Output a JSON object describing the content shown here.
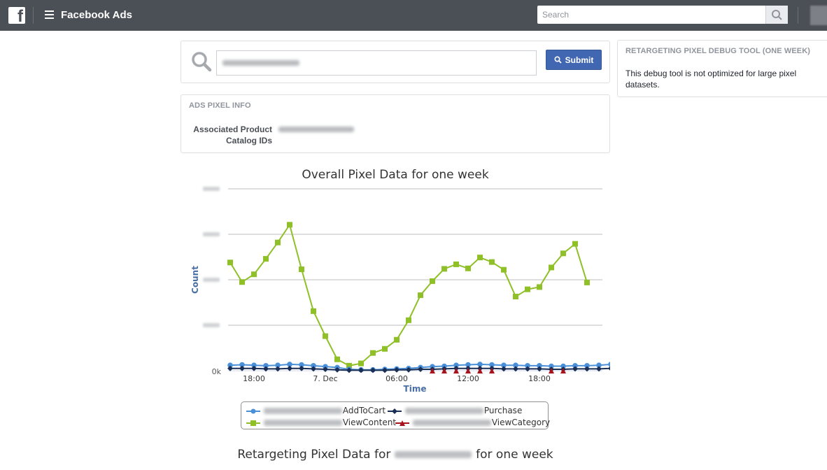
{
  "topbar": {
    "app_title": "Facebook Ads",
    "search_placeholder": "Search",
    "logo_letter": "f"
  },
  "pixel_search": {
    "submit_label": "Submit"
  },
  "pixel_info": {
    "title": "ADS PIXEL INFO",
    "catalog_label_1": "Associated Product",
    "catalog_label_2": "Catalog IDs"
  },
  "debug_panel": {
    "title": "RETARGETING PIXEL DEBUG TOOL (ONE WEEK)",
    "message": "This debug tool is not optimized for large pixel datasets."
  },
  "chart_data": {
    "type": "line",
    "title": "Overall Pixel Data for one week",
    "xlabel": "Time",
    "ylabel": "Count",
    "y_tick_labels": [
      "0k"
    ],
    "x_tick_labels": [
      "18:00",
      "7. Dec",
      "06:00",
      "12:00",
      "18:00"
    ],
    "grid": true,
    "legend_position": "bottom",
    "series": [
      {
        "name": "AddToCart",
        "color": "#4a90d9",
        "marker": "circle",
        "values": [
          1.2,
          1.3,
          1.2,
          1.1,
          1.2,
          1.4,
          1.3,
          1.1,
          0.9,
          0.7,
          0.3,
          0.2,
          0.2,
          0.3,
          0.4,
          0.5,
          0.7,
          0.9,
          1.0,
          1.2,
          1.3,
          1.4,
          1.3,
          1.2,
          1.2,
          1.1,
          1.1,
          1.0,
          1.0,
          1.1,
          1.1,
          1.2,
          1.4,
          1.1,
          0.7
        ]
      },
      {
        "name": "Purchase",
        "color": "#1b2f55",
        "marker": "diamond",
        "values": [
          0.5,
          0.5,
          0.5,
          0.4,
          0.4,
          0.5,
          0.5,
          0.4,
          0.3,
          0.2,
          0.1,
          0.1,
          0.1,
          0.1,
          0.2,
          0.2,
          0.3,
          0.3,
          0.4,
          0.5,
          0.5,
          0.5,
          0.5,
          0.4,
          0.4,
          0.4,
          0.4,
          0.3,
          0.3,
          0.4,
          0.4,
          0.4,
          0.5,
          0.4,
          null
        ]
      },
      {
        "name": "ViewContent",
        "color": "#8fc028",
        "marker": "square",
        "values": [
          23.8,
          19.5,
          21.2,
          24.6,
          28.2,
          32.1,
          22.3,
          13.1,
          7.6,
          2.5,
          1.1,
          1.6,
          3.9,
          4.8,
          6.8,
          11.1,
          16.6,
          19.7,
          22.4,
          23.4,
          22.5,
          24.9,
          23.9,
          22.2,
          16.3,
          17.9,
          18.4,
          22.7,
          25.8,
          27.9,
          19.4,
          null,
          null,
          null,
          null
        ]
      },
      {
        "name": "ViewCategory",
        "color": "#a8141b",
        "marker": "triangle",
        "values": [
          null,
          null,
          null,
          null,
          null,
          null,
          null,
          null,
          null,
          null,
          null,
          null,
          null,
          null,
          null,
          null,
          null,
          0.0,
          0.0,
          0.0,
          0.0,
          0.0,
          0.0,
          null,
          null,
          null,
          null,
          0.0,
          0.0,
          null,
          null,
          null,
          null,
          null,
          null
        ]
      }
    ]
  },
  "legend": {
    "items": [
      {
        "label": "AddToCart"
      },
      {
        "label": "Purchase"
      },
      {
        "label": "ViewContent"
      },
      {
        "label": "ViewCategory"
      }
    ]
  },
  "chart2": {
    "title_prefix": "Retargeting Pixel Data for",
    "title_suffix": "for one week"
  }
}
